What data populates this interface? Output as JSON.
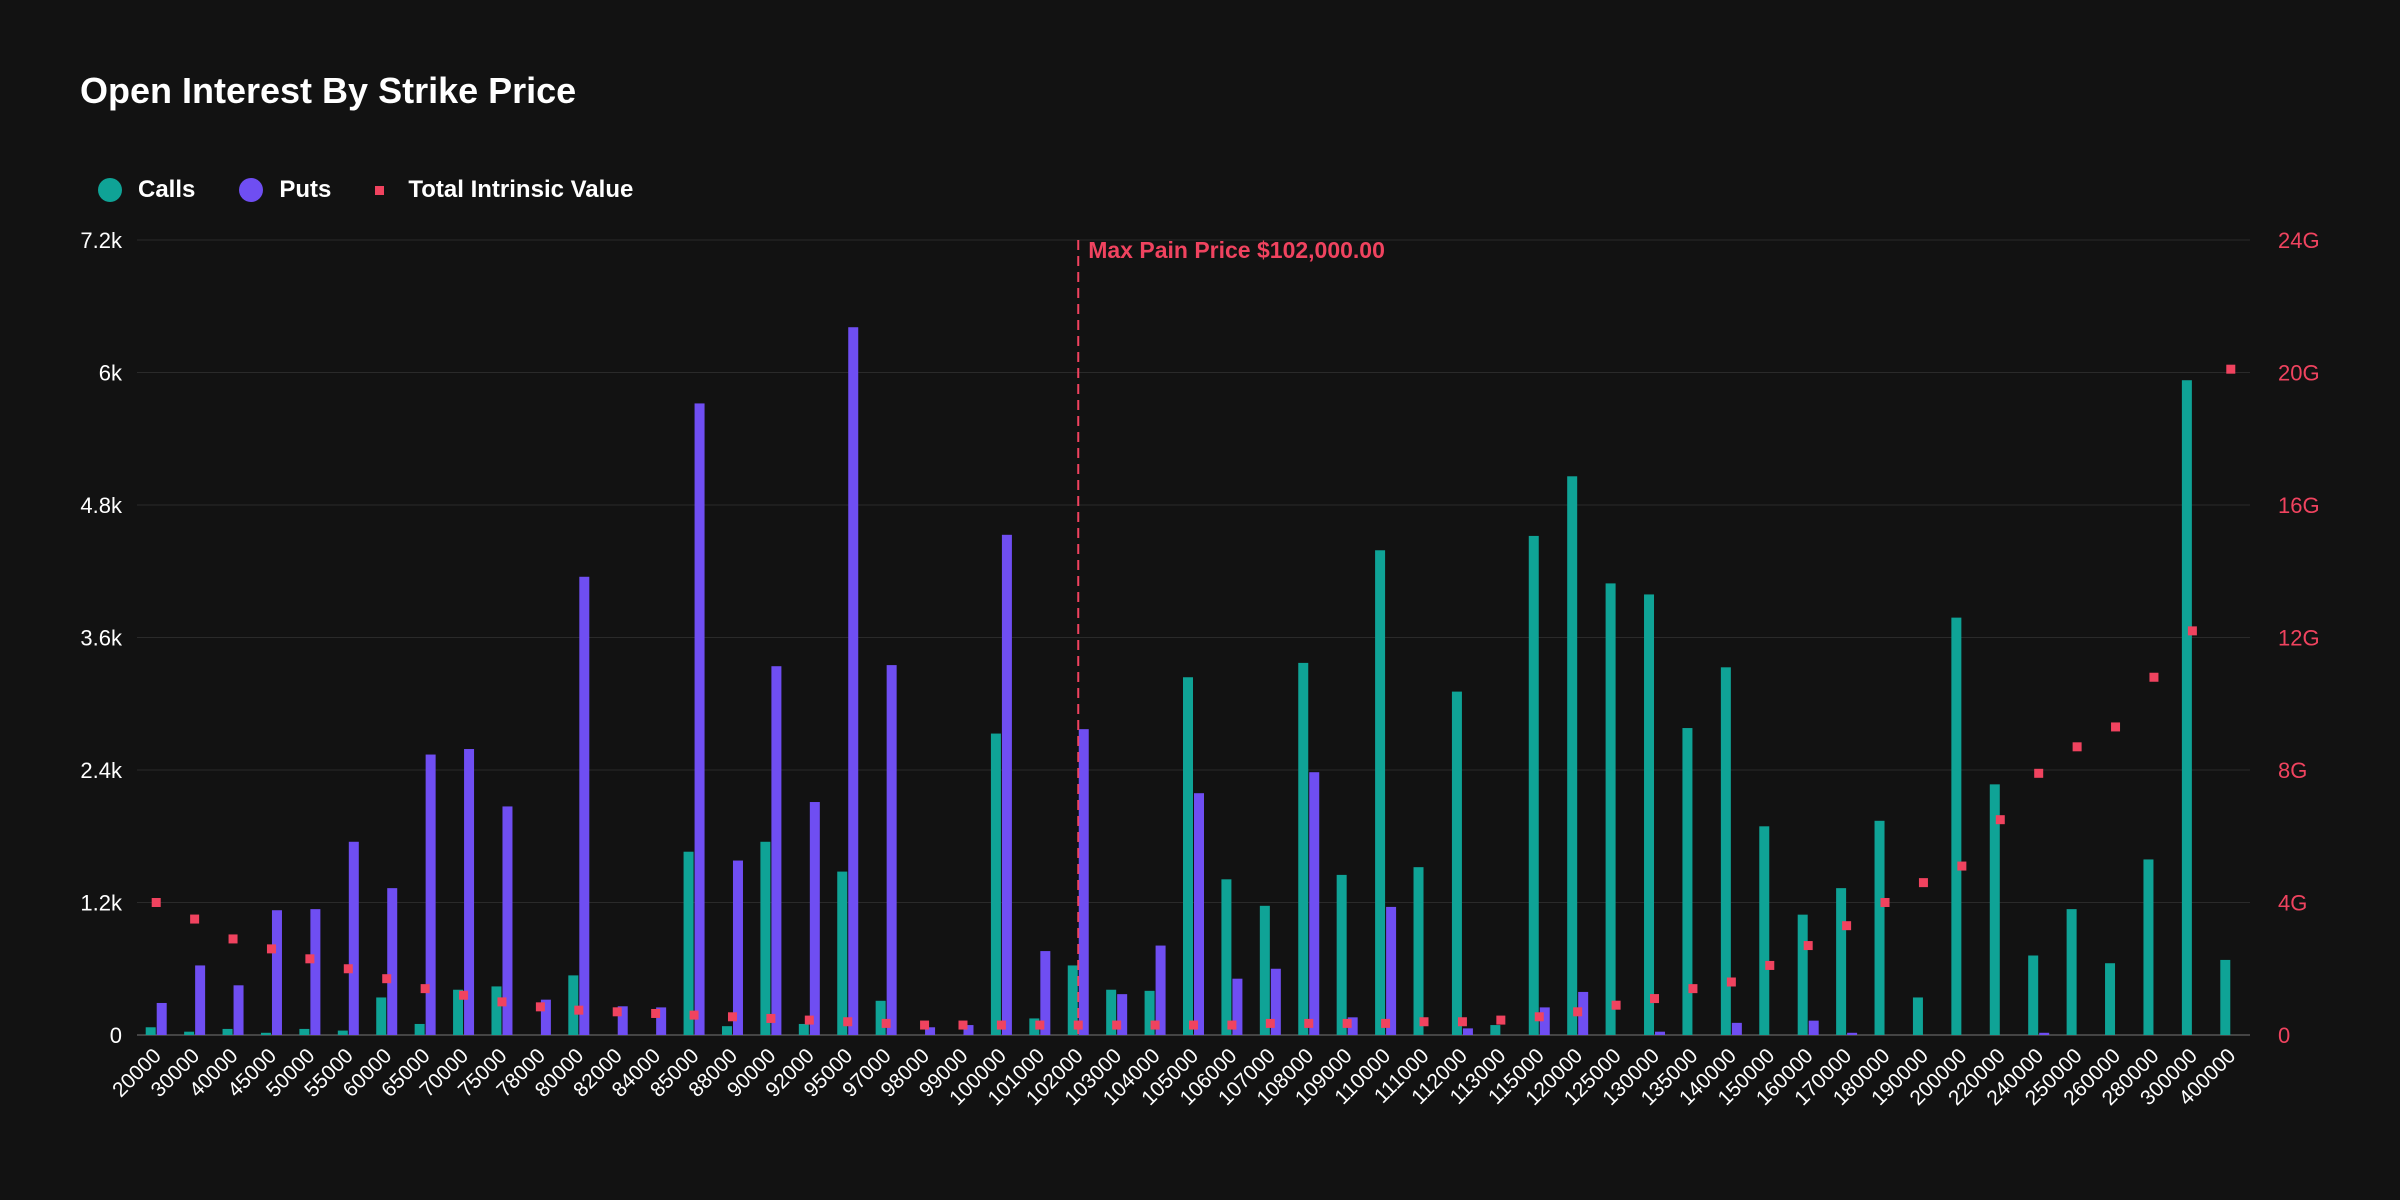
{
  "colors": {
    "calls": "#0fa396",
    "puts": "#6f4ef2",
    "intrinsic": "#f0435f",
    "grid": "#2a2a2a",
    "axis_text": "#ffffff"
  },
  "chart_data": {
    "type": "bar",
    "title": "Open Interest By Strike Price",
    "xlabel": "",
    "ylabel": "",
    "ylim": [
      0,
      7200
    ],
    "y2lim": [
      0,
      24
    ],
    "yticks": [
      "0",
      "1.2k",
      "2.4k",
      "3.6k",
      "4.8k",
      "6k",
      "7.2k"
    ],
    "y2ticks": [
      "0",
      "4G",
      "8G",
      "12G",
      "16G",
      "20G",
      "24G"
    ],
    "legend_position": "top-left",
    "grid": true,
    "categories": [
      "20000",
      "30000",
      "40000",
      "45000",
      "50000",
      "55000",
      "60000",
      "65000",
      "70000",
      "75000",
      "78000",
      "80000",
      "82000",
      "84000",
      "85000",
      "88000",
      "90000",
      "92000",
      "95000",
      "97000",
      "98000",
      "99000",
      "100000",
      "101000",
      "102000",
      "103000",
      "104000",
      "105000",
      "106000",
      "107000",
      "108000",
      "109000",
      "110000",
      "111000",
      "112000",
      "113000",
      "115000",
      "120000",
      "125000",
      "130000",
      "135000",
      "140000",
      "150000",
      "160000",
      "170000",
      "180000",
      "190000",
      "200000",
      "220000",
      "240000",
      "250000",
      "260000",
      "280000",
      "300000",
      "400000"
    ],
    "series": [
      {
        "name": "Calls",
        "type": "bar",
        "axis": "left",
        "values": [
          70,
          30,
          55,
          20,
          55,
          40,
          340,
          100,
          410,
          440,
          0,
          540,
          0,
          0,
          1660,
          80,
          1750,
          100,
          1480,
          310,
          0,
          0,
          2730,
          150,
          630,
          410,
          400,
          3240,
          1410,
          1170,
          3370,
          1450,
          4390,
          1520,
          3110,
          90,
          4520,
          5060,
          4090,
          3990,
          2780,
          3330,
          1890,
          1090,
          1330,
          1940,
          340,
          3780,
          2270,
          720,
          1140,
          650,
          1590,
          5930,
          680
        ]
      },
      {
        "name": "Puts",
        "type": "bar",
        "axis": "left",
        "values": [
          290,
          630,
          450,
          1130,
          1140,
          1750,
          1330,
          2540,
          2590,
          2070,
          320,
          4150,
          260,
          250,
          5720,
          1580,
          3340,
          2110,
          6410,
          3350,
          70,
          90,
          4530,
          760,
          2770,
          370,
          810,
          2190,
          510,
          600,
          2380,
          160,
          1160,
          0,
          60,
          0,
          250,
          390,
          0,
          30,
          0,
          110,
          0,
          130,
          20,
          0,
          0,
          0,
          0,
          20,
          0,
          0,
          0,
          0,
          0
        ]
      },
      {
        "name": "Total Intrinsic Value",
        "type": "scatter",
        "axis": "right",
        "unit": "G",
        "values": [
          4.0,
          3.5,
          2.9,
          2.6,
          2.3,
          2.0,
          1.7,
          1.4,
          1.2,
          1.0,
          0.85,
          0.75,
          0.7,
          0.65,
          0.6,
          0.55,
          0.5,
          0.45,
          0.4,
          0.35,
          0.3,
          0.3,
          0.3,
          0.3,
          0.3,
          0.3,
          0.3,
          0.3,
          0.3,
          0.35,
          0.35,
          0.35,
          0.35,
          0.4,
          0.4,
          0.45,
          0.55,
          0.7,
          0.9,
          1.1,
          1.4,
          1.6,
          2.1,
          2.7,
          3.3,
          4.0,
          4.6,
          5.1,
          6.5,
          7.9,
          8.7,
          9.3,
          10.8,
          12.2,
          20.1
        ]
      }
    ],
    "annotations": [
      {
        "type": "vline",
        "x": "102000",
        "label": "Max Pain Price $102,000.00"
      }
    ]
  }
}
